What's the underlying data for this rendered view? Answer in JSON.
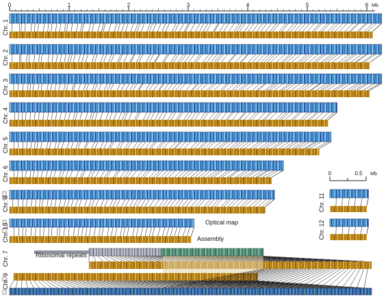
{
  "scale_top": {
    "ticks": [
      "0",
      "1",
      "2",
      "3",
      "4",
      "5",
      "6"
    ],
    "unit": "Mb"
  },
  "scale_small": {
    "ticks": [
      "0",
      "0.5"
    ],
    "unit": "Mb"
  },
  "chromosomes": [
    {
      "label": "Chr. 1",
      "optical_mb": 6.25,
      "assembly_mb": 6.1
    },
    {
      "label": "Chr. 2",
      "optical_mb": 6.25,
      "assembly_mb": 6.05
    },
    {
      "label": "Chr. 3",
      "optical_mb": 6.25,
      "assembly_mb": 6.05
    },
    {
      "label": "Chr. 4",
      "optical_mb": 5.5,
      "assembly_mb": 5.35
    },
    {
      "label": "Chr. 5",
      "optical_mb": 5.4,
      "assembly_mb": 5.2
    },
    {
      "label": "Chr. 6",
      "optical_mb": 4.6,
      "assembly_mb": 4.4
    },
    {
      "label": "Chr. 8",
      "optical_mb": 4.45,
      "assembly_mb": 4.3
    },
    {
      "label": "Chr. 10",
      "optical_mb": 3.1,
      "assembly_mb": 3.05
    },
    {
      "label": "Chr. 7",
      "optical_mb": 6.0,
      "assembly_mb": 6.1
    },
    {
      "label": "Chr. 9",
      "optical_mb": 6.25,
      "assembly_mb": 4.1
    },
    {
      "label": "Chr. 11",
      "optical_mb": 0.7,
      "assembly_mb": 0.65
    },
    {
      "label": "Chr. 12",
      "optical_mb": 0.7,
      "assembly_mb": 0.65
    }
  ],
  "annotations": {
    "optical_map": "Optical map",
    "assembly": "Assembly",
    "ribosomal": "Ribosomal repeats"
  },
  "colors": {
    "optical_light": "#5fb2e3",
    "optical_dark": "#1f3f8f",
    "assembly_light": "#d9a52a",
    "assembly_dark": "#7a4a08",
    "green": "#6aa07a"
  }
}
